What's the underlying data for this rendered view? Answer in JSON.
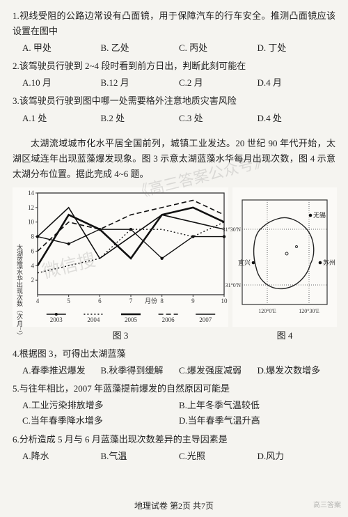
{
  "q1": {
    "stem": "1.视线受阻的公路边常设有凸面镜，用于保障汽车的行车安全。推测凸面镜应该设置在图中",
    "opts": {
      "A": "A. 甲处",
      "B": "B. 乙处",
      "C": "C. 丙处",
      "D": "D. 丁处"
    }
  },
  "q2": {
    "stem": "2.该驾驶员行驶到 2~4 段时看到前方日出，判断此刻可能在",
    "opts": {
      "A": "A.10 月",
      "B": "B.12 月",
      "C": "C.2 月",
      "D": "D.4 月"
    }
  },
  "q3": {
    "stem": "3.该驾驶员行驶到图中哪一处需要格外注意地质灾害风险",
    "opts": {
      "A": "A.1 处",
      "B": "B.2 处",
      "C": "C.3 处",
      "D": "D.4 处"
    }
  },
  "passage": "太湖流域城市化水平居全国前列，城镇工业发达。20 世纪 90 年代开始，太湖区域连年出现蓝藻爆发现象。图 3 示意太湖蓝藻水华每月出现次数，图 4 示意太湖分布位置。据此完成 4~6 题。",
  "fig3": {
    "caption": "图 3",
    "xlabel": "月份",
    "ylabel": "太湖蓝藻水华出现次数（次/月⁻¹）",
    "x_ticks": [
      4,
      5,
      6,
      7,
      8,
      9,
      10
    ],
    "y_range": [
      0,
      14
    ],
    "series": [
      {
        "name": "2003",
        "style": "solid_marker",
        "pts": [
          [
            4,
            8
          ],
          [
            5,
            7
          ],
          [
            6,
            9
          ],
          [
            7,
            9
          ],
          [
            8,
            5
          ],
          [
            9,
            8
          ],
          [
            10,
            8
          ]
        ]
      },
      {
        "name": "2004",
        "style": "dotted",
        "pts": [
          [
            4,
            3
          ],
          [
            5,
            4
          ],
          [
            6,
            5
          ],
          [
            7,
            9
          ],
          [
            8,
            9
          ],
          [
            9,
            8
          ],
          [
            10,
            10
          ]
        ]
      },
      {
        "name": "2005",
        "style": "thick",
        "pts": [
          [
            4,
            4
          ],
          [
            5,
            11
          ],
          [
            6,
            9
          ],
          [
            7,
            5
          ],
          [
            8,
            11
          ],
          [
            9,
            12
          ],
          [
            10,
            10
          ]
        ]
      },
      {
        "name": "2006",
        "style": "dashed",
        "pts": [
          [
            4,
            6
          ],
          [
            5,
            10
          ],
          [
            6,
            9
          ],
          [
            7,
            11
          ],
          [
            8,
            12
          ],
          [
            9,
            13
          ],
          [
            10,
            11
          ]
        ]
      },
      {
        "name": "2007",
        "style": "solid",
        "pts": [
          [
            4,
            8
          ],
          [
            5,
            12
          ],
          [
            6,
            5
          ],
          [
            7,
            8
          ],
          [
            8,
            11
          ],
          [
            9,
            10
          ],
          [
            10,
            9
          ]
        ]
      }
    ],
    "legend_years": [
      "2003",
      "2004",
      "2005",
      "2006",
      "2007"
    ],
    "colors": {
      "axis": "#333",
      "grid": "#999",
      "line": "#111",
      "bg": "#fbfaf7"
    }
  },
  "fig4": {
    "caption": "图 4",
    "lat_labels": [
      "31°30'N",
      "31°0'N"
    ],
    "lon_labels": [
      "120°0'E",
      "120°30'E"
    ],
    "cities": {
      "wuxi": "无锡",
      "yixing": "宜兴",
      "suzhou": "苏州"
    },
    "colors": {
      "axis": "#333",
      "water": "none",
      "outline": "#222",
      "bg": "#fbfaf7"
    }
  },
  "q4": {
    "stem": "4.根据图 3，可得出太湖蓝藻",
    "opts": {
      "A": "A.春季推迟爆发",
      "B": "B.秋季得到缓解",
      "C": "C.爆发强度减弱",
      "D": "D.爆发次数增多"
    }
  },
  "q5": {
    "stem": "5.与往年相比，2007 年蓝藻提前爆发的自然原因可能是",
    "opts": {
      "A": "A.工业污染排放增多",
      "B": "B.上年冬季气温较低",
      "C": "C.当年春季降水增多",
      "D": "D.当年春季气温升高"
    }
  },
  "q6": {
    "stem": "6.分析造成 5 月与 6 月蓝藻出现次数差异的主导因素是",
    "opts": {
      "A": "A.降水",
      "B": "B.气温",
      "C": "C.光照",
      "D": "D.风力"
    }
  },
  "footer": "地理试卷 第2页 共7页",
  "watermarks": {
    "w1": "微信搜",
    "w2": "《高三答案公众号》"
  },
  "corner": "高三答案"
}
